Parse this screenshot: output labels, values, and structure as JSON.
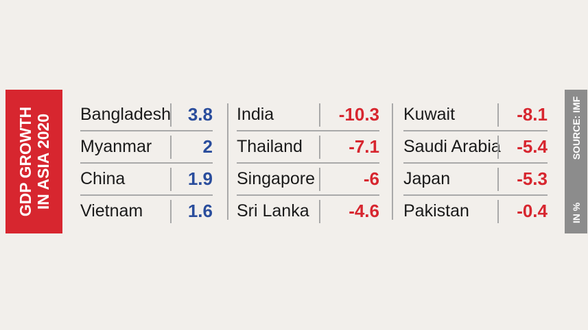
{
  "title_line1": "GDP GROWTH",
  "title_line2": "IN ASIA 2020",
  "source": "SOURCE: IMF",
  "unit": "IN %",
  "colors": {
    "positive": "#2a4d9c",
    "negative": "#d7262f",
    "title_band": "#d7262f",
    "source_band": "#8c8c8c"
  },
  "chart_data": {
    "type": "table",
    "title": "GDP GROWTH IN ASIA 2020",
    "columns": [
      {
        "rows": [
          {
            "country": "Bangladesh",
            "value": "3.8"
          },
          {
            "country": "Myanmar",
            "value": "2"
          },
          {
            "country": "China",
            "value": "1.9"
          },
          {
            "country": "Vietnam",
            "value": "1.6"
          }
        ]
      },
      {
        "rows": [
          {
            "country": "India",
            "value": "-10.3"
          },
          {
            "country": "Thailand",
            "value": "-7.1"
          },
          {
            "country": "Singapore",
            "value": "-6"
          },
          {
            "country": "Sri Lanka",
            "value": "-4.6"
          }
        ]
      },
      {
        "rows": [
          {
            "country": "Kuwait",
            "value": "-8.1"
          },
          {
            "country": "Saudi Arabia",
            "value": "-5.4"
          },
          {
            "country": "Japan",
            "value": "-5.3"
          },
          {
            "country": "Pakistan",
            "value": "-0.4"
          }
        ]
      }
    ]
  }
}
